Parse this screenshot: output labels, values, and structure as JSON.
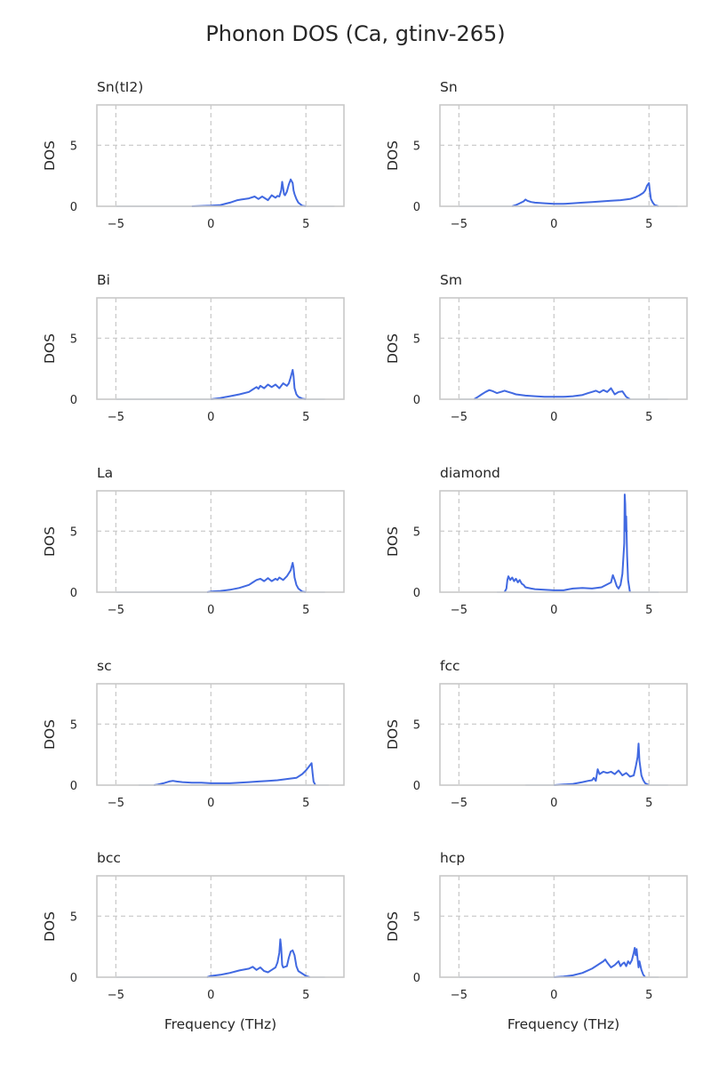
{
  "figure": {
    "title": "Phonon DOS (Ca, gtinv-265)"
  },
  "chart_data": {
    "type": "line",
    "layout": "5x2 grid of subplots",
    "xlabel": "Frequency (THz)",
    "ylabel": "DOS",
    "xlim": [
      -6,
      7
    ],
    "ylim": [
      0,
      8.3
    ],
    "xticks": [
      -5,
      0,
      5
    ],
    "yticks": [
      0,
      5
    ],
    "grid": true,
    "line_color": "#4169e1",
    "tail_color": "#b8c8ee",
    "panels": [
      {
        "name": "Sn(tI2)",
        "tail": [
          -5,
          6.5
        ],
        "x": [
          -1,
          0,
          0.5,
          1,
          1.4,
          1.6,
          2,
          2.3,
          2.5,
          2.7,
          3,
          3.2,
          3.4,
          3.5,
          3.6,
          3.7,
          3.75,
          3.8,
          3.85,
          3.9,
          4,
          4.1,
          4.2,
          4.3,
          4.35,
          4.4,
          4.5,
          4.6,
          4.8,
          5
        ],
        "y": [
          0,
          0.05,
          0.1,
          0.3,
          0.5,
          0.55,
          0.65,
          0.8,
          0.6,
          0.8,
          0.5,
          0.9,
          0.7,
          0.85,
          0.8,
          1.3,
          2.0,
          1.5,
          1.0,
          0.9,
          1.2,
          1.8,
          2.2,
          1.9,
          1.3,
          1.0,
          0.6,
          0.3,
          0.05,
          0
        ]
      },
      {
        "name": "Sn",
        "tail": [
          -5,
          6.5
        ],
        "x": [
          -2.2,
          -2,
          -1.8,
          -1.6,
          -1.5,
          -1.4,
          -1.2,
          -1,
          -0.5,
          0,
          0.5,
          1,
          1.5,
          2,
          2.5,
          3,
          3.5,
          4,
          4.3,
          4.5,
          4.7,
          4.8,
          4.9,
          5,
          5.05,
          5.1,
          5.2,
          5.3,
          5.5
        ],
        "y": [
          0,
          0.1,
          0.25,
          0.4,
          0.55,
          0.45,
          0.35,
          0.3,
          0.25,
          0.2,
          0.2,
          0.25,
          0.3,
          0.35,
          0.4,
          0.45,
          0.5,
          0.6,
          0.75,
          0.9,
          1.1,
          1.3,
          1.7,
          1.9,
          1.2,
          0.6,
          0.3,
          0.1,
          0
        ]
      },
      {
        "name": "Bi",
        "tail": [
          -5,
          6
        ],
        "x": [
          0,
          0.5,
          1,
          1.5,
          2,
          2.2,
          2.4,
          2.5,
          2.6,
          2.8,
          3,
          3.2,
          3.4,
          3.6,
          3.8,
          4,
          4.1,
          4.2,
          4.3,
          4.35,
          4.4,
          4.5,
          4.6,
          4.8,
          5
        ],
        "y": [
          0,
          0.1,
          0.25,
          0.4,
          0.6,
          0.8,
          1.0,
          0.85,
          1.1,
          0.9,
          1.2,
          1.0,
          1.2,
          0.9,
          1.3,
          1.1,
          1.3,
          1.8,
          2.4,
          1.9,
          0.9,
          0.4,
          0.2,
          0.05,
          0
        ]
      },
      {
        "name": "Sm",
        "tail": [
          -5,
          6
        ],
        "x": [
          -4.2,
          -4,
          -3.8,
          -3.6,
          -3.4,
          -3.2,
          -3,
          -2.8,
          -2.6,
          -2.4,
          -2.2,
          -2,
          -1.5,
          -1,
          -0.5,
          0,
          0.5,
          1,
          1.5,
          1.8,
          2,
          2.2,
          2.4,
          2.6,
          2.8,
          3,
          3.2,
          3.4,
          3.6,
          3.8,
          4
        ],
        "y": [
          0,
          0.2,
          0.4,
          0.6,
          0.75,
          0.65,
          0.5,
          0.6,
          0.7,
          0.6,
          0.5,
          0.4,
          0.3,
          0.25,
          0.2,
          0.2,
          0.2,
          0.25,
          0.35,
          0.5,
          0.6,
          0.7,
          0.55,
          0.75,
          0.6,
          0.9,
          0.4,
          0.6,
          0.65,
          0.2,
          0
        ]
      },
      {
        "name": "La",
        "tail": [
          -5,
          6
        ],
        "x": [
          -0.2,
          0,
          0.5,
          1,
          1.5,
          2,
          2.2,
          2.4,
          2.6,
          2.8,
          3,
          3.2,
          3.4,
          3.5,
          3.6,
          3.8,
          4,
          4.2,
          4.3,
          4.35,
          4.4,
          4.5,
          4.6,
          4.8,
          5
        ],
        "y": [
          0,
          0.05,
          0.1,
          0.2,
          0.35,
          0.6,
          0.8,
          1.0,
          1.1,
          0.9,
          1.15,
          0.9,
          1.1,
          1.0,
          1.2,
          1.0,
          1.3,
          1.8,
          2.4,
          2.0,
          1.2,
          0.6,
          0.3,
          0.05,
          0
        ]
      },
      {
        "name": "diamond",
        "tail": [
          -3,
          5.5
        ],
        "x": [
          -2.6,
          -2.5,
          -2.45,
          -2.4,
          -2.3,
          -2.2,
          -2.1,
          -2,
          -1.9,
          -1.8,
          -1.7,
          -1.6,
          -1.5,
          -1.2,
          -1,
          -0.5,
          0,
          0.5,
          0.8,
          1,
          1.5,
          2,
          2.5,
          3,
          3.1,
          3.2,
          3.3,
          3.4,
          3.5,
          3.6,
          3.7,
          3.72,
          3.75,
          3.78,
          3.8,
          3.85,
          3.9,
          4
        ],
        "y": [
          0,
          0.3,
          1.0,
          1.3,
          1.0,
          1.2,
          0.9,
          1.1,
          0.8,
          1.0,
          0.7,
          0.6,
          0.4,
          0.3,
          0.25,
          0.2,
          0.15,
          0.15,
          0.25,
          0.3,
          0.35,
          0.3,
          0.4,
          0.8,
          1.4,
          1.0,
          0.5,
          0.3,
          0.6,
          1.5,
          4.0,
          8.0,
          7.2,
          5.0,
          6.2,
          3.0,
          1.0,
          0
        ]
      },
      {
        "name": "sc",
        "tail": [
          -3.8,
          6.2
        ],
        "x": [
          -3,
          -2.8,
          -2.5,
          -2.2,
          -2,
          -1.8,
          -1.5,
          -1,
          -0.5,
          0,
          0.5,
          1,
          1.5,
          2,
          2.5,
          3,
          3.5,
          4,
          4.5,
          4.8,
          5,
          5.2,
          5.3,
          5.35,
          5.4,
          5.5
        ],
        "y": [
          0,
          0.05,
          0.15,
          0.3,
          0.35,
          0.3,
          0.25,
          0.2,
          0.2,
          0.15,
          0.15,
          0.15,
          0.2,
          0.25,
          0.3,
          0.35,
          0.4,
          0.5,
          0.6,
          0.9,
          1.2,
          1.6,
          1.8,
          1.0,
          0.3,
          0
        ]
      },
      {
        "name": "fcc",
        "tail": [
          -1.5,
          6
        ],
        "x": [
          0,
          0.5,
          1,
          1.5,
          1.8,
          2,
          2.1,
          2.2,
          2.3,
          2.4,
          2.6,
          2.8,
          3,
          3.2,
          3.4,
          3.6,
          3.8,
          4,
          4.2,
          4.3,
          4.4,
          4.45,
          4.5,
          4.6,
          4.7,
          4.8,
          5
        ],
        "y": [
          0,
          0.05,
          0.1,
          0.25,
          0.35,
          0.4,
          0.6,
          0.35,
          1.3,
          0.9,
          1.1,
          1.0,
          1.1,
          0.9,
          1.2,
          0.8,
          1.0,
          0.7,
          0.8,
          1.5,
          2.3,
          3.4,
          2.0,
          0.8,
          0.4,
          0.15,
          0
        ]
      },
      {
        "name": "bcc",
        "tail": [
          -5,
          6
        ],
        "x": [
          -0.2,
          0,
          0.5,
          1,
          1.5,
          2,
          2.2,
          2.4,
          2.6,
          2.8,
          3,
          3.2,
          3.4,
          3.5,
          3.6,
          3.65,
          3.7,
          3.75,
          3.8,
          4,
          4.1,
          4.2,
          4.3,
          4.4,
          4.5,
          4.6,
          4.8,
          5,
          5.2
        ],
        "y": [
          0,
          0.1,
          0.2,
          0.35,
          0.55,
          0.7,
          0.85,
          0.6,
          0.8,
          0.5,
          0.4,
          0.6,
          0.8,
          1.2,
          2.0,
          3.1,
          2.4,
          1.0,
          0.8,
          0.9,
          1.6,
          2.1,
          2.2,
          1.8,
          0.9,
          0.5,
          0.3,
          0.1,
          0
        ]
      },
      {
        "name": "hcp",
        "tail": [
          -5,
          5.5
        ],
        "x": [
          0,
          0.5,
          1,
          1.5,
          2,
          2.2,
          2.4,
          2.6,
          2.7,
          2.8,
          3,
          3.2,
          3.4,
          3.5,
          3.6,
          3.7,
          3.8,
          3.9,
          4,
          4.1,
          4.2,
          4.25,
          4.3,
          4.35,
          4.4,
          4.45,
          4.5,
          4.6,
          4.7,
          4.8
        ],
        "y": [
          0,
          0.05,
          0.15,
          0.35,
          0.7,
          0.9,
          1.1,
          1.3,
          1.45,
          1.2,
          0.8,
          1.0,
          1.3,
          0.9,
          1.1,
          1.2,
          0.9,
          1.3,
          1.1,
          1.4,
          2.0,
          2.4,
          1.8,
          2.3,
          1.5,
          0.8,
          1.3,
          0.6,
          0.2,
          0
        ]
      }
    ]
  }
}
